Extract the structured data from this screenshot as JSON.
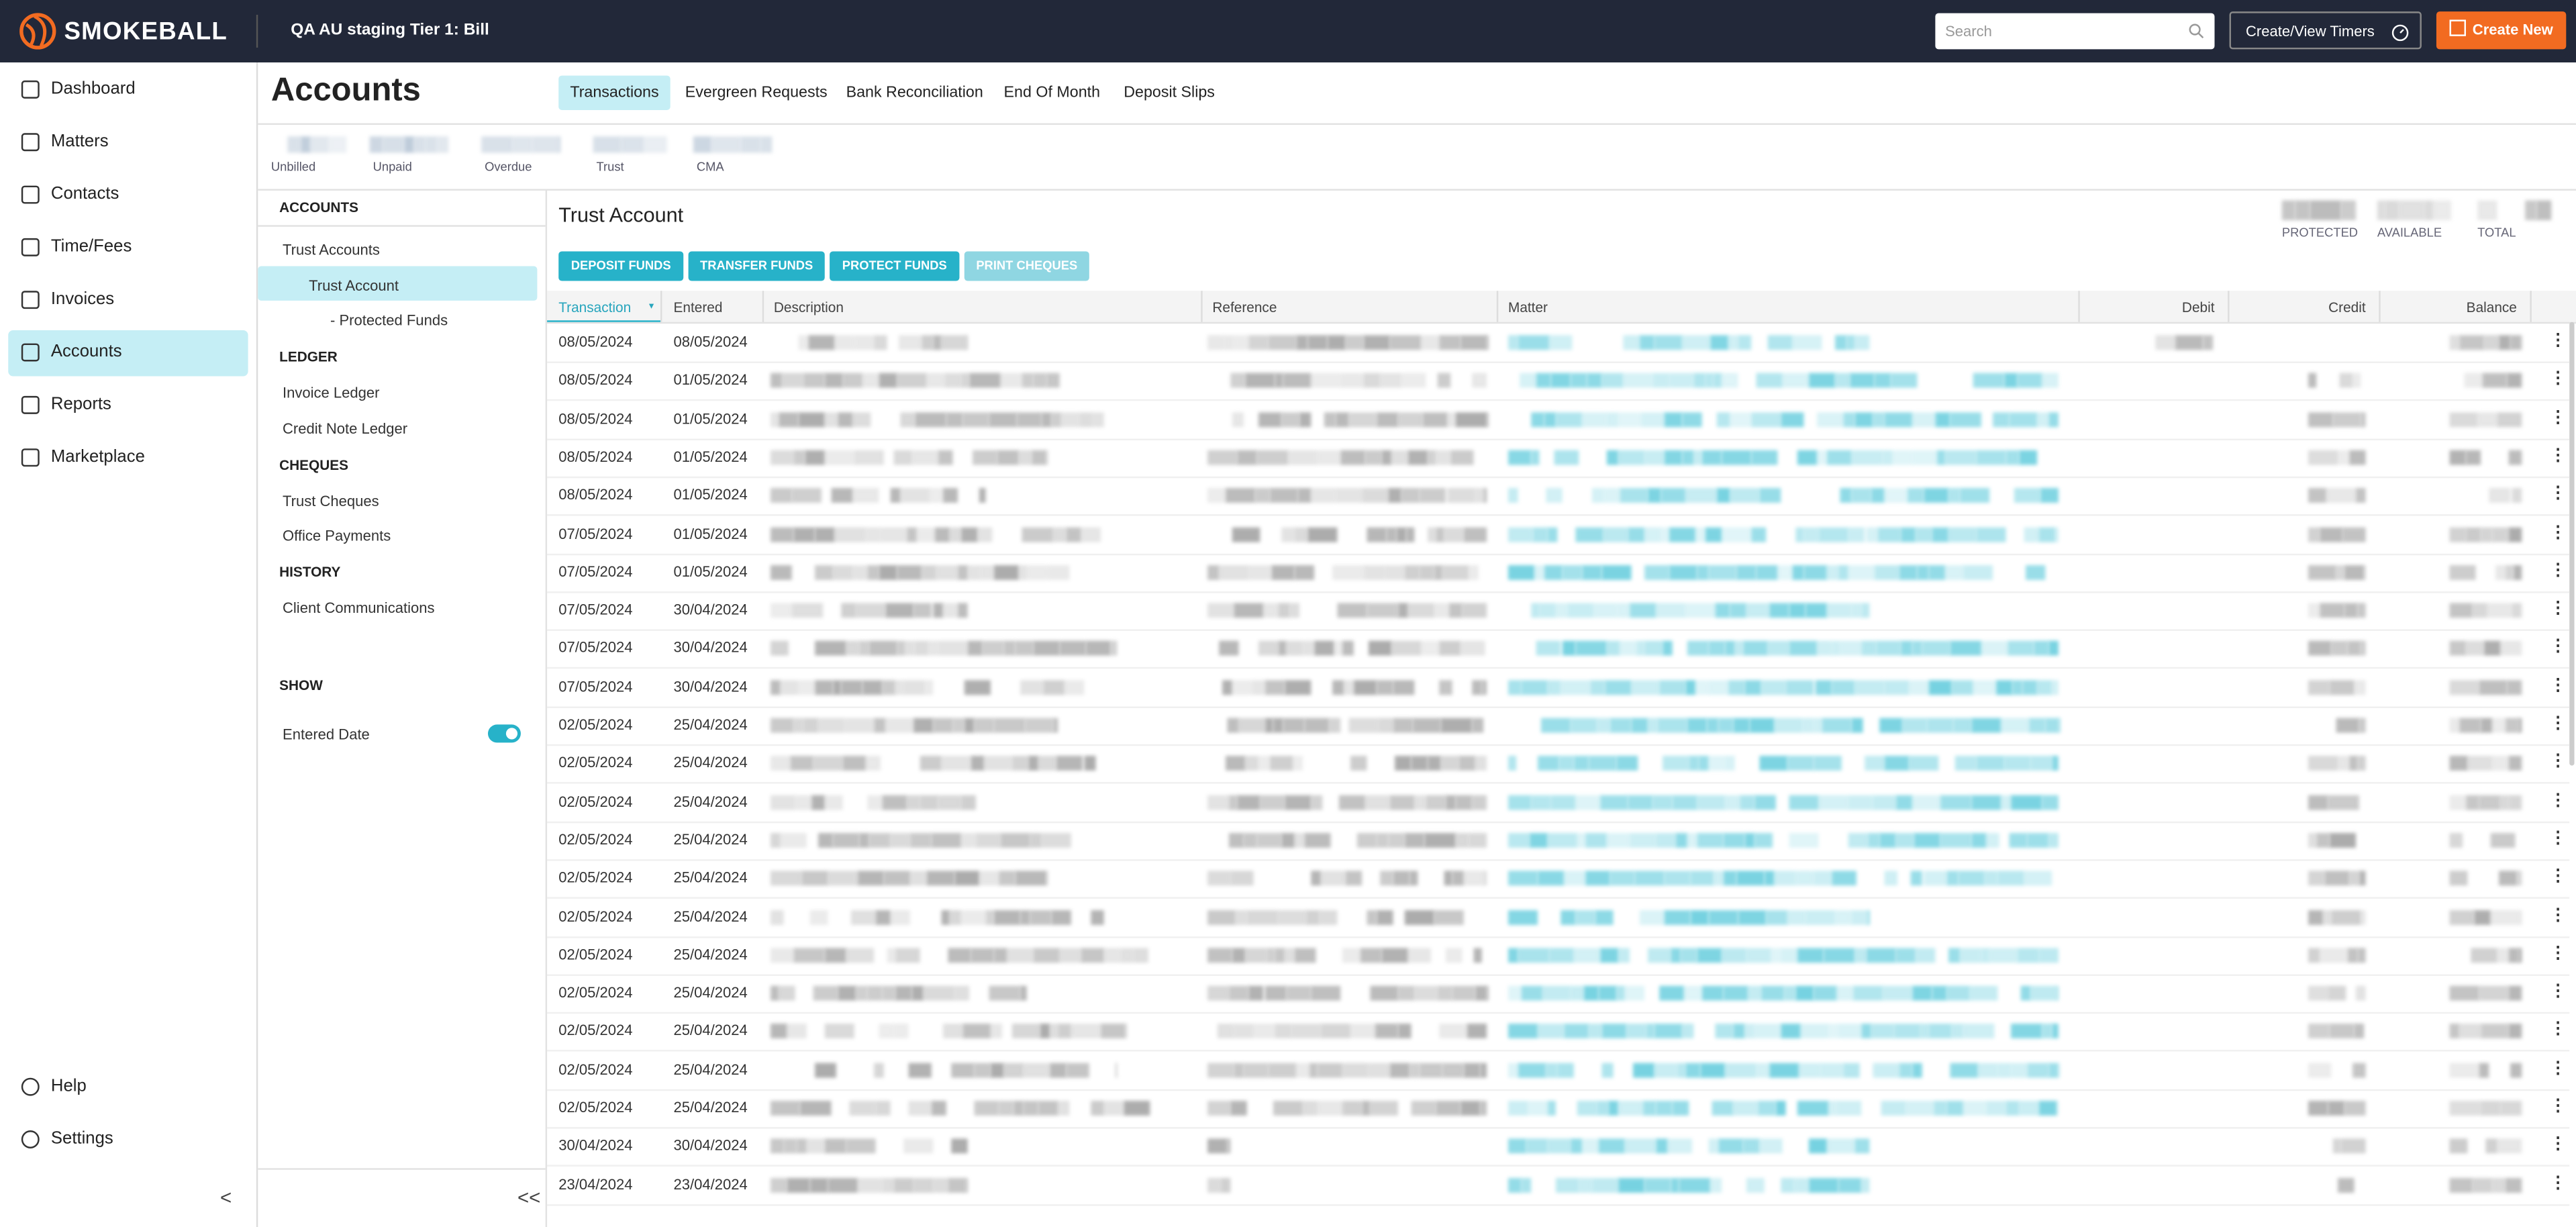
{
  "header": {
    "logo": "SMOKEBALL",
    "title": "QA AU staging Tier 1: Bill",
    "search_placeholder": "Search",
    "timers_button": "Create/View Timers",
    "create_button": "Create New"
  },
  "nav": {
    "items": [
      "Dashboard",
      "Matters",
      "Contacts",
      "Time/Fees",
      "Invoices",
      "Accounts",
      "Reports",
      "Marketplace"
    ],
    "active": 5,
    "bottom": [
      "Help",
      "Settings"
    ]
  },
  "page": {
    "title": "Accounts",
    "tabs": [
      "Transactions",
      "Evergreen Requests",
      "Bank Reconciliation",
      "End Of Month",
      "Deposit Slips"
    ],
    "active_tab": 0,
    "summary": [
      "Unbilled",
      "Unpaid",
      "Overdue",
      "Trust",
      "CMA"
    ]
  },
  "subnav": {
    "sections": [
      {
        "title": "ACCOUNTS",
        "items": [
          "Trust Accounts",
          "Trust Account",
          "- Protected Funds"
        ]
      },
      {
        "title": "LEDGER",
        "items": [
          "Invoice Ledger",
          "Credit Note Ledger"
        ]
      },
      {
        "title": "CHEQUES",
        "items": [
          "Trust Cheques",
          "Office Payments"
        ]
      },
      {
        "title": "HISTORY",
        "items": [
          "Client Communications"
        ]
      }
    ],
    "show_title": "SHOW",
    "toggle_label": "Entered Date"
  },
  "panel": {
    "title": "Trust Account",
    "balances": [
      "PROTECTED",
      "AVAILABLE",
      "TOTAL"
    ],
    "buttons": [
      "DEPOSIT FUNDS",
      "TRANSFER FUNDS",
      "PROTECT FUNDS",
      "PRINT CHEQUES"
    ]
  },
  "table": {
    "columns": [
      "Transaction",
      "Entered",
      "Description",
      "Reference",
      "Matter",
      "Debit",
      "Credit",
      "Balance"
    ],
    "rows": [
      [
        "08/05/2024",
        "08/05/2024"
      ],
      [
        "08/05/2024",
        "01/05/2024"
      ],
      [
        "08/05/2024",
        "01/05/2024"
      ],
      [
        "08/05/2024",
        "01/05/2024"
      ],
      [
        "08/05/2024",
        "01/05/2024"
      ],
      [
        "07/05/2024",
        "01/05/2024"
      ],
      [
        "07/05/2024",
        "01/05/2024"
      ],
      [
        "07/05/2024",
        "30/04/2024"
      ],
      [
        "07/05/2024",
        "30/04/2024"
      ],
      [
        "07/05/2024",
        "30/04/2024"
      ],
      [
        "02/05/2024",
        "25/04/2024"
      ],
      [
        "02/05/2024",
        "25/04/2024"
      ],
      [
        "02/05/2024",
        "25/04/2024"
      ],
      [
        "02/05/2024",
        "25/04/2024"
      ],
      [
        "02/05/2024",
        "25/04/2024"
      ],
      [
        "02/05/2024",
        "25/04/2024"
      ],
      [
        "02/05/2024",
        "25/04/2024"
      ],
      [
        "02/05/2024",
        "25/04/2024"
      ],
      [
        "02/05/2024",
        "25/04/2024"
      ],
      [
        "02/05/2024",
        "25/04/2024"
      ],
      [
        "02/05/2024",
        "25/04/2024"
      ],
      [
        "30/04/2024",
        "30/04/2024"
      ],
      [
        "23/04/2024",
        "23/04/2024"
      ]
    ]
  }
}
